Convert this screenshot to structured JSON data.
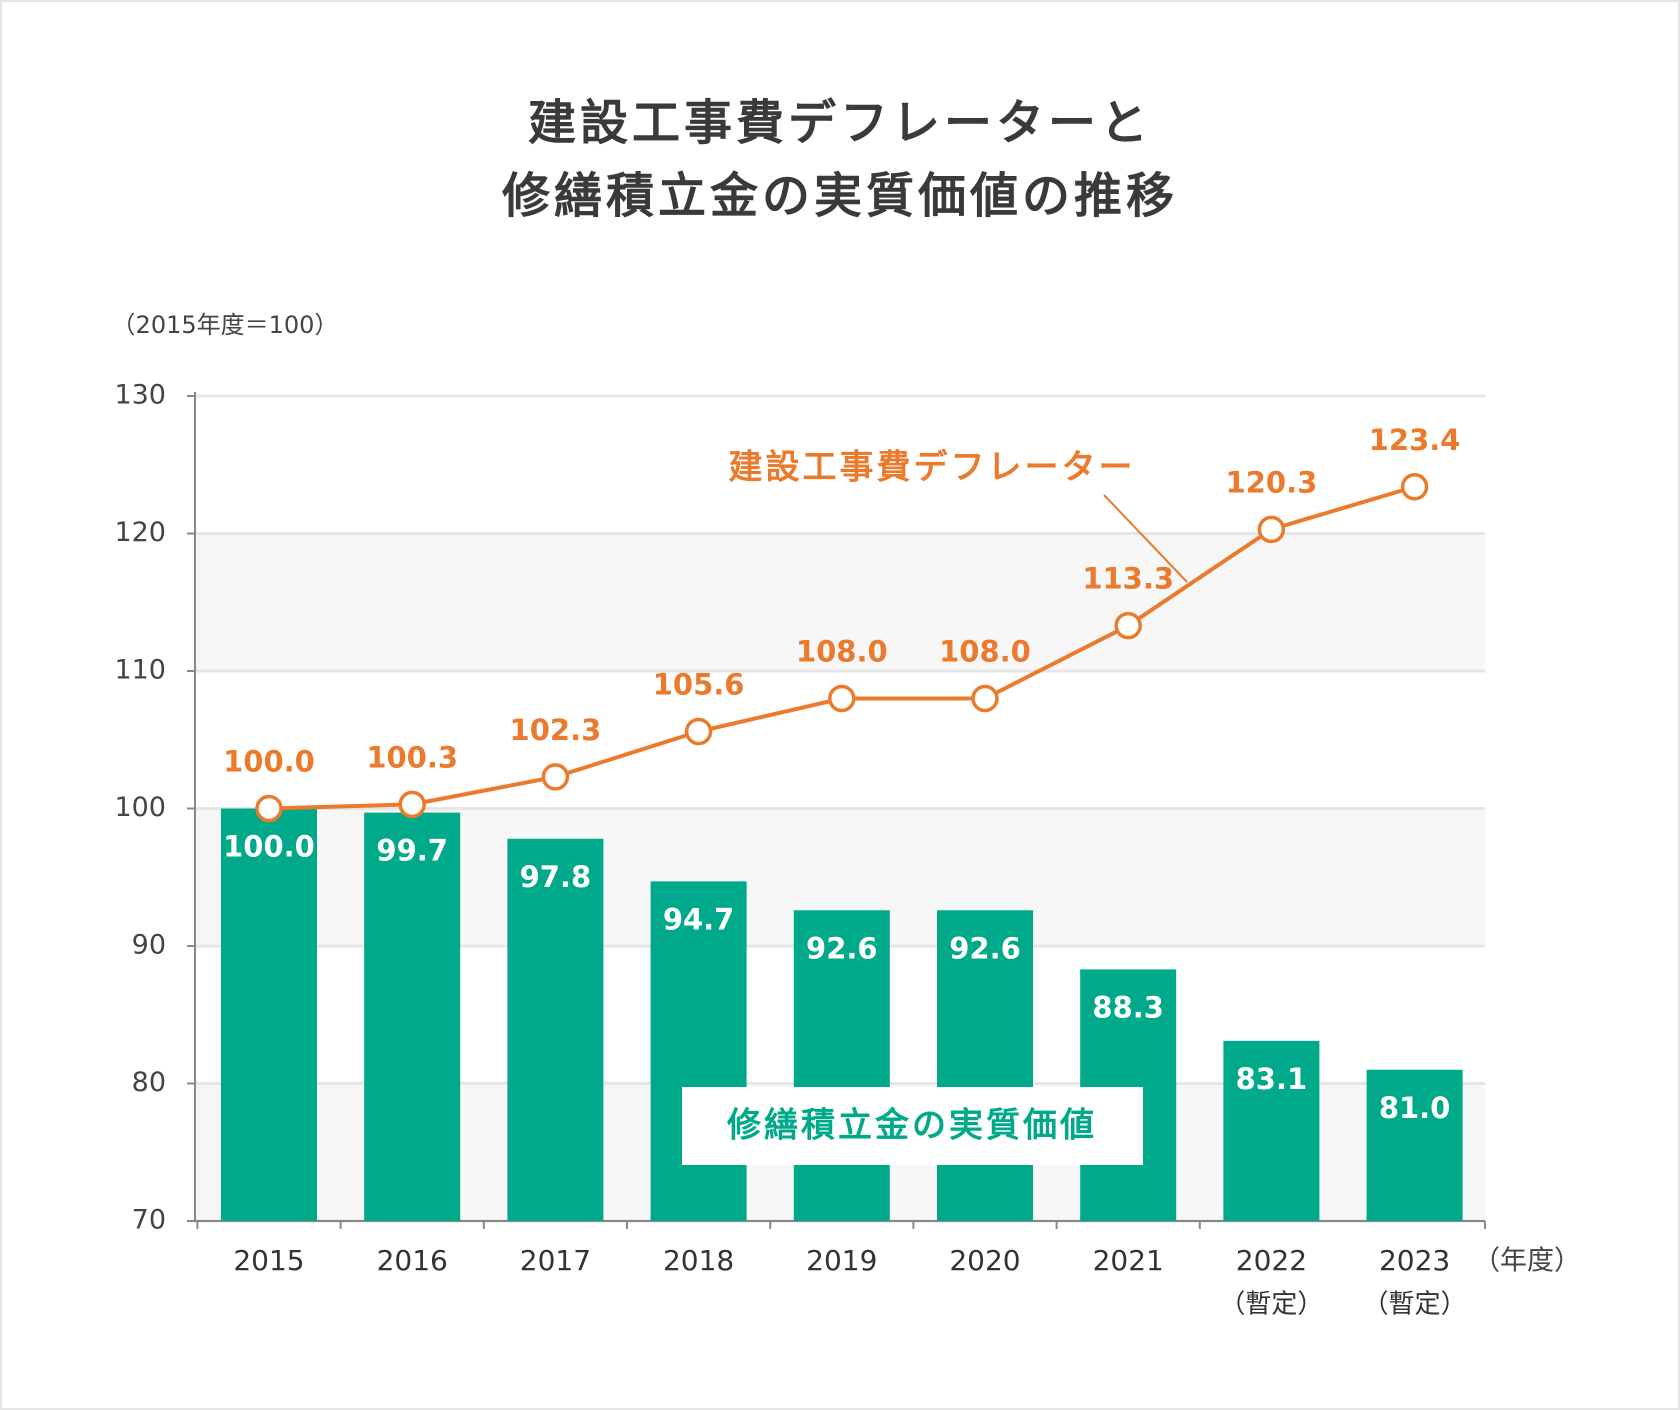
{
  "chart_data": {
    "type": "bar",
    "title": [
      "建設工事費デフレーターと",
      "修繕積立金の実質価値の推移"
    ],
    "y_unit": "（2015年度＝100）",
    "x_unit": "（年度）",
    "categories": [
      "2015",
      "2016",
      "2017",
      "2018",
      "2019",
      "2020",
      "2021",
      "2022",
      "2023"
    ],
    "category_notes": [
      null,
      null,
      null,
      null,
      null,
      null,
      null,
      "（暫定）",
      "（暫定）"
    ],
    "series": [
      {
        "name": "修繕積立金の実質価値",
        "type": "bar",
        "color": "#00a98a",
        "values": [
          100.0,
          99.7,
          97.8,
          94.7,
          92.6,
          92.6,
          88.3,
          83.1,
          81.0
        ],
        "value_labels": [
          "100.0",
          "99.7",
          "97.8",
          "94.7",
          "92.6",
          "92.6",
          "88.3",
          "83.1",
          "81.0"
        ]
      },
      {
        "name": "建設工事費デフレーター",
        "type": "line",
        "color": "#ec7a2d",
        "values": [
          100.0,
          100.3,
          102.3,
          105.6,
          108.0,
          108.0,
          113.3,
          120.3,
          123.4
        ],
        "value_labels": [
          "100.0",
          "100.3",
          "102.3",
          "105.6",
          "108.0",
          "108.0",
          "113.3",
          "120.3",
          "123.4"
        ]
      }
    ],
    "ylim": [
      70,
      130
    ],
    "yticks": [
      70,
      80,
      90,
      100,
      110,
      120,
      130
    ],
    "grid": true
  }
}
